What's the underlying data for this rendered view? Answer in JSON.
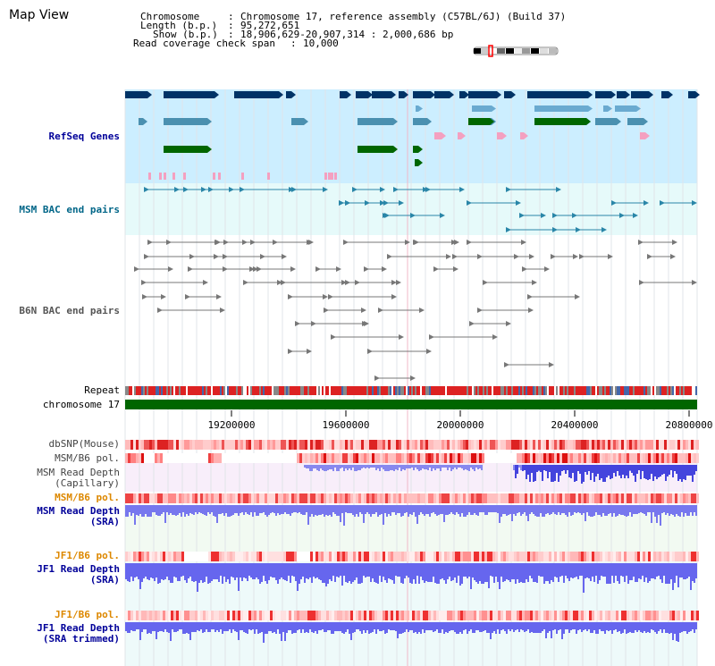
{
  "title": "Map View",
  "info": {
    "chromosome_label": "Chromosome",
    "chromosome_value": "Chromosome 17, reference assembly (C57BL/6J) (Build 37)",
    "length_label": "Length (b.p.)",
    "length_value": "95,272,651",
    "show_label": "Show (b.p.)",
    "show_value": "18,906,629-20,907,314 : 2,000,686 bp",
    "coverage_label": "Read coverage check span",
    "coverage_value": "10,000"
  },
  "tracks": {
    "refseq": "RefSeq Genes",
    "msm_bac": "MSM BAC end pairs",
    "b6n_bac": "B6N BAC end pairs",
    "repeat": "Repeat",
    "chromosome": "chromosome 17",
    "dbsnp": "dbSNP(Mouse)",
    "msm_b6_pol_1": "MSM/B6 pol.",
    "msm_depth_cap_1": "MSM Read Depth",
    "msm_depth_cap_2": "(Capillary)",
    "msm_b6_pol_2": "MSM/B6 pol.",
    "msm_depth_sra_1": "MSM Read Depth",
    "msm_depth_sra_2": "(SRA)",
    "jf1_b6_pol_1": "JF1/B6 pol.",
    "jf1_depth_sra_1": "JF1 Read Depth",
    "jf1_depth_sra_2": "(SRA)",
    "jf1_b6_pol_2": "JF1/B6 pol.",
    "jf1_depth_trim_1": "JF1 Read Depth",
    "jf1_depth_trim_2": "(SRA trimmed)"
  },
  "axis_ticks": [
    "19200000",
    "19600000",
    "20000000",
    "20400000",
    "20800000"
  ],
  "colors": {
    "refseq_label": "#000099",
    "msm_bac_label": "#006688",
    "b6n_bac_label": "#555555",
    "pol_orange": "#dd8800",
    "depth_blue": "#000099",
    "gene_dark": "#003366",
    "gene_mid": "#4a90b0",
    "gene_green": "#006600",
    "refseq_bg": "#cceeff",
    "msm_bg": "#e6fafa"
  }
}
